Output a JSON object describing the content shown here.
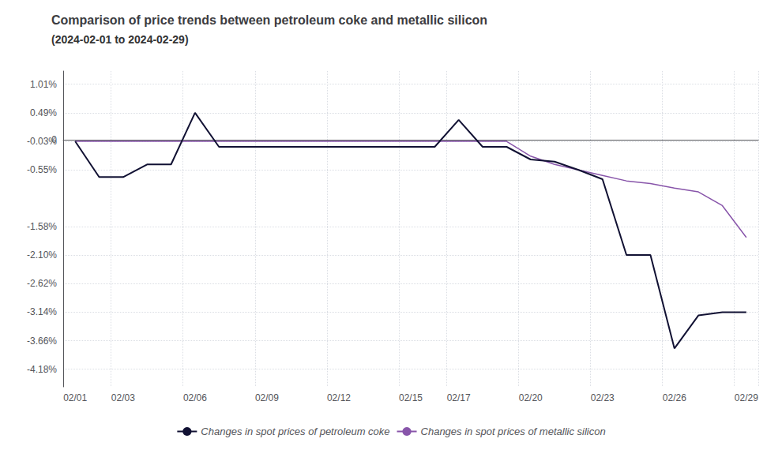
{
  "chart_data": {
    "type": "line",
    "title": "Comparison of price trends between petroleum coke and metallic silicon",
    "subtitle": "(2024-02-01 to 2024-02-29)",
    "categories": [
      "02/01",
      null,
      "02/03",
      null,
      null,
      "02/06",
      null,
      null,
      "02/09",
      null,
      null,
      "02/12",
      null,
      null,
      "02/15",
      null,
      "02/17",
      null,
      null,
      "02/20",
      null,
      null,
      "02/23",
      null,
      null,
      "02/26",
      null,
      null,
      "02/29"
    ],
    "series": [
      {
        "name": "Changes in spot prices of petroleum coke",
        "color": "#111133",
        "values": [
          -0.03,
          -0.68,
          -0.68,
          -0.45,
          -0.45,
          0.49,
          -0.13,
          -0.13,
          -0.13,
          -0.13,
          -0.13,
          -0.13,
          -0.13,
          -0.13,
          -0.13,
          -0.13,
          0.36,
          -0.13,
          -0.13,
          -0.36,
          -0.4,
          -0.55,
          -0.72,
          -2.1,
          -2.1,
          -3.8,
          -3.2,
          -3.14,
          -3.14
        ]
      },
      {
        "name": "Changes in spot prices of metallic silicon",
        "color": "#8855aa",
        "values": [
          -0.03,
          -0.03,
          -0.03,
          -0.03,
          -0.03,
          -0.03,
          -0.03,
          -0.03,
          -0.03,
          -0.03,
          -0.03,
          -0.03,
          -0.03,
          -0.03,
          -0.03,
          -0.03,
          -0.03,
          -0.03,
          -0.03,
          -0.3,
          -0.45,
          -0.55,
          -0.65,
          -0.75,
          -0.8,
          -0.88,
          -0.95,
          -1.2,
          -1.78
        ]
      }
    ],
    "ylim": [
      -4.5,
      1.25
    ],
    "yticks": [
      {
        "value": 1.01,
        "label": "1.01%"
      },
      {
        "value": 0.49,
        "label": "0.49%"
      },
      {
        "value": -0.03,
        "label": "-0.03%"
      },
      {
        "value": -0.55,
        "label": "-0.55%"
      },
      0,
      {
        "value": -1.58,
        "label": "-1.58%"
      },
      {
        "value": -2.1,
        "label": "-2.10%"
      },
      {
        "value": -2.62,
        "label": "-2.62%"
      },
      {
        "value": -3.14,
        "label": "-3.14%"
      },
      {
        "value": -3.66,
        "label": "-3.66%"
      },
      {
        "value": -4.18,
        "label": "-4.18%"
      }
    ],
    "grid": true,
    "legend": "bottom"
  }
}
